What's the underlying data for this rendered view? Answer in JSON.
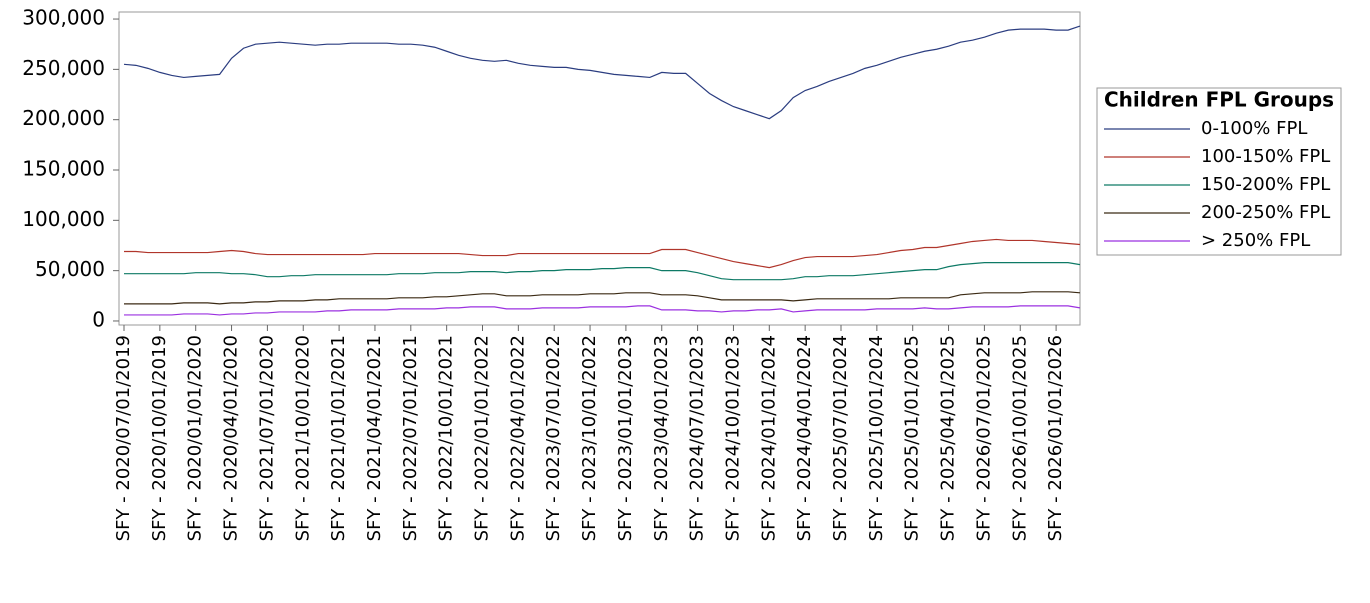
{
  "chart_data": {
    "type": "line",
    "categories": [
      "SFY - 2020/07/01/2019",
      null,
      null,
      "SFY - 2020/10/01/2019",
      null,
      null,
      "SFY - 2020/01/01/2020",
      null,
      null,
      "SFY - 2020/04/01/2020",
      null,
      null,
      "SFY - 2021/07/01/2020",
      null,
      null,
      "SFY - 2021/10/01/2020",
      null,
      null,
      "SFY - 2021/01/01/2021",
      null,
      null,
      "SFY - 2021/04/01/2021",
      null,
      null,
      "SFY - 2022/07/01/2021",
      null,
      null,
      "SFY - 2022/10/01/2021",
      null,
      null,
      "SFY - 2022/01/01/2022",
      null,
      null,
      "SFY - 2022/04/01/2022",
      null,
      null,
      "SFY - 2023/07/01/2022",
      null,
      null,
      "SFY - 2023/10/01/2022",
      null,
      null,
      "SFY - 2023/01/01/2023",
      null,
      null,
      "SFY - 2023/04/01/2023",
      null,
      null,
      "SFY - 2024/07/01/2023",
      null,
      null,
      "SFY - 2024/10/01/2023",
      null,
      null,
      "SFY - 2024/01/01/2024",
      null,
      null,
      "SFY - 2024/04/01/2024",
      null,
      null,
      "SFY - 2025/07/01/2024",
      null,
      null,
      "SFY - 2025/10/01/2024",
      null,
      null,
      "SFY - 2025/01/01/2025",
      null,
      null,
      "SFY - 2025/04/01/2025",
      null,
      null,
      "SFY - 2026/07/01/2025",
      null,
      null,
      "SFY - 2026/10/01/2025",
      null,
      null,
      "SFY - 2026/01/01/2026",
      null,
      null
    ],
    "series": [
      {
        "name": "0-100% FPL",
        "color": "#2b3d80",
        "values": [
          255000,
          254000,
          251000,
          247000,
          244000,
          242000,
          243000,
          244000,
          245000,
          261000,
          271000,
          275000,
          276000,
          277000,
          276000,
          275000,
          274000,
          275000,
          275000,
          276000,
          276000,
          276000,
          276000,
          275000,
          275000,
          274000,
          272000,
          268000,
          264000,
          261000,
          259000,
          258000,
          259000,
          256000,
          254000,
          253000,
          252000,
          252000,
          250000,
          249000,
          247000,
          245000,
          244000,
          243000,
          242000,
          247000,
          246000,
          246000,
          236000,
          226000,
          219000,
          213000,
          209000,
          205000,
          201000,
          209000,
          222000,
          229000,
          233000,
          238000,
          242000,
          246000,
          251000,
          254000,
          258000,
          262000,
          265000,
          268000,
          270000,
          273000,
          277000,
          279000,
          282000,
          286000,
          289000,
          290000,
          290000,
          290000,
          289000,
          289000,
          293000
        ]
      },
      {
        "name": "100-150% FPL",
        "color": "#b0352b",
        "values": [
          69000,
          69000,
          68000,
          68000,
          68000,
          68000,
          68000,
          68000,
          69000,
          70000,
          69000,
          67000,
          66000,
          66000,
          66000,
          66000,
          66000,
          66000,
          66000,
          66000,
          66000,
          67000,
          67000,
          67000,
          67000,
          67000,
          67000,
          67000,
          67000,
          66000,
          65000,
          65000,
          65000,
          67000,
          67000,
          67000,
          67000,
          67000,
          67000,
          67000,
          67000,
          67000,
          67000,
          67000,
          67000,
          71000,
          71000,
          71000,
          68000,
          65000,
          62000,
          59000,
          57000,
          55000,
          53000,
          56000,
          60000,
          63000,
          64000,
          64000,
          64000,
          64000,
          65000,
          66000,
          68000,
          70000,
          71000,
          73000,
          73000,
          75000,
          77000,
          79000,
          80000,
          81000,
          80000,
          80000,
          80000,
          79000,
          78000,
          77000,
          76000
        ]
      },
      {
        "name": "150-200% FPL",
        "color": "#0e7a66",
        "values": [
          47000,
          47000,
          47000,
          47000,
          47000,
          47000,
          48000,
          48000,
          48000,
          47000,
          47000,
          46000,
          44000,
          44000,
          45000,
          45000,
          46000,
          46000,
          46000,
          46000,
          46000,
          46000,
          46000,
          47000,
          47000,
          47000,
          48000,
          48000,
          48000,
          49000,
          49000,
          49000,
          48000,
          49000,
          49000,
          50000,
          50000,
          51000,
          51000,
          51000,
          52000,
          52000,
          53000,
          53000,
          53000,
          50000,
          50000,
          50000,
          48000,
          45000,
          42000,
          41000,
          41000,
          41000,
          41000,
          41000,
          42000,
          44000,
          44000,
          45000,
          45000,
          45000,
          46000,
          47000,
          48000,
          49000,
          50000,
          51000,
          51000,
          54000,
          56000,
          57000,
          58000,
          58000,
          58000,
          58000,
          58000,
          58000,
          58000,
          58000,
          56000
        ]
      },
      {
        "name": "200-250% FPL",
        "color": "#3b2a14",
        "values": [
          17000,
          17000,
          17000,
          17000,
          17000,
          18000,
          18000,
          18000,
          17000,
          18000,
          18000,
          19000,
          19000,
          20000,
          20000,
          20000,
          21000,
          21000,
          22000,
          22000,
          22000,
          22000,
          22000,
          23000,
          23000,
          23000,
          24000,
          24000,
          25000,
          26000,
          27000,
          27000,
          25000,
          25000,
          25000,
          26000,
          26000,
          26000,
          26000,
          27000,
          27000,
          27000,
          28000,
          28000,
          28000,
          26000,
          26000,
          26000,
          25000,
          23000,
          21000,
          21000,
          21000,
          21000,
          21000,
          21000,
          20000,
          21000,
          22000,
          22000,
          22000,
          22000,
          22000,
          22000,
          22000,
          23000,
          23000,
          23000,
          23000,
          23000,
          26000,
          27000,
          28000,
          28000,
          28000,
          28000,
          29000,
          29000,
          29000,
          29000,
          28000
        ]
      },
      {
        "name": "> 250% FPL",
        "color": "#9b30e0",
        "values": [
          6000,
          6000,
          6000,
          6000,
          6000,
          7000,
          7000,
          7000,
          6000,
          7000,
          7000,
          8000,
          8000,
          9000,
          9000,
          9000,
          9000,
          10000,
          10000,
          11000,
          11000,
          11000,
          11000,
          12000,
          12000,
          12000,
          12000,
          13000,
          13000,
          14000,
          14000,
          14000,
          12000,
          12000,
          12000,
          13000,
          13000,
          13000,
          13000,
          14000,
          14000,
          14000,
          14000,
          15000,
          15000,
          11000,
          11000,
          11000,
          10000,
          10000,
          9000,
          10000,
          10000,
          11000,
          11000,
          12000,
          9000,
          10000,
          11000,
          11000,
          11000,
          11000,
          11000,
          12000,
          12000,
          12000,
          12000,
          13000,
          12000,
          12000,
          13000,
          14000,
          14000,
          14000,
          14000,
          15000,
          15000,
          15000,
          15000,
          15000,
          13000
        ]
      }
    ],
    "ylim": [
      -4000,
      307000
    ],
    "yticks": [
      0,
      {
        "value": 50000,
        "label": "50,000"
      },
      {
        "value": 100000,
        "label": "100,000"
      },
      {
        "value": 150000,
        "label": "150,000"
      },
      {
        "value": 200000,
        "label": "200,000"
      },
      {
        "value": 250000,
        "label": "250,000"
      },
      {
        "value": 300000,
        "label": "300,000"
      }
    ],
    "legend_title": "Children FPL Groups",
    "legend": "right"
  }
}
